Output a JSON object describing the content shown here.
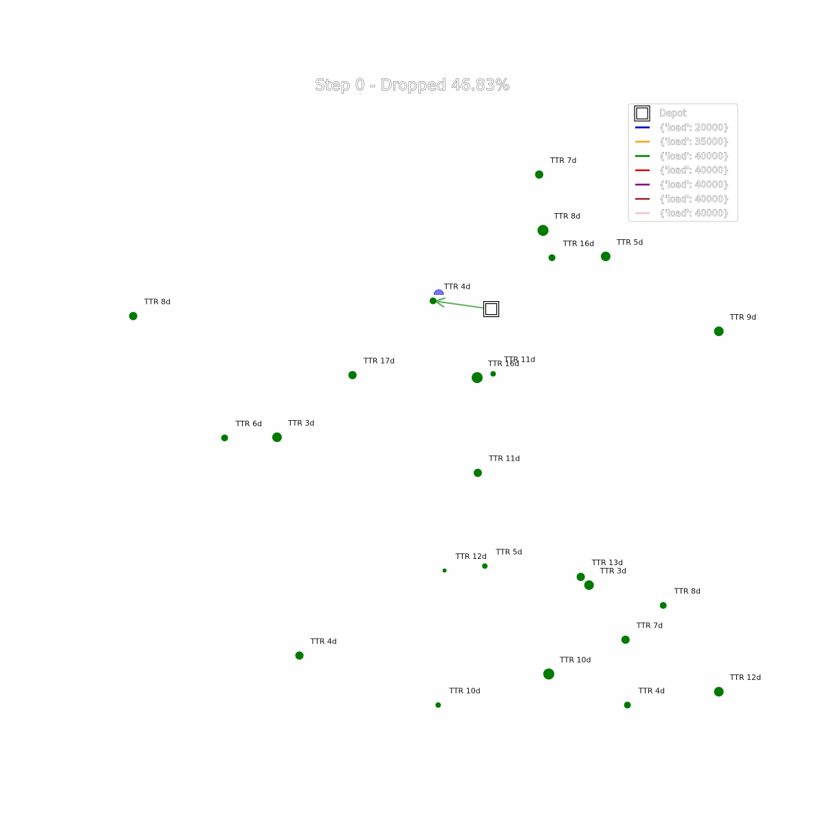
{
  "title": "Step 0 - Dropped 46.83%",
  "legend": {
    "entries": [
      {
        "label": "Depot",
        "marker": "depot-square"
      },
      {
        "label": "{'load': 20000}",
        "color": "#0000cc"
      },
      {
        "label": "{'load': 35000}",
        "color": "#f5a623"
      },
      {
        "label": "{'load': 40000}",
        "color": "#007a00"
      },
      {
        "label": "{'load': 40000}",
        "color": "#e01010"
      },
      {
        "label": "{'load': 40000}",
        "color": "#800080"
      },
      {
        "label": "{'load': 40000}",
        "color": "#a03030"
      },
      {
        "label": "{'load': 40000}",
        "color": "#f7c0c8"
      }
    ]
  },
  "chart_data": {
    "type": "scatter",
    "title": "Step 0 - Dropped 46.83%",
    "xlabel": "",
    "ylabel": "",
    "xlim": [
      0,
      1000
    ],
    "ylim": [
      0,
      1000
    ],
    "grid": false,
    "legend_position": "top-right",
    "depot": {
      "x": 607,
      "y": 670
    },
    "points": [
      {
        "x": 682,
        "y": 882,
        "size": 6,
        "label": "TTR 7d"
      },
      {
        "x": 688,
        "y": 794,
        "size": 8,
        "label": "TTR 8d"
      },
      {
        "x": 702,
        "y": 751,
        "size": 5,
        "label": "TTR 16d"
      },
      {
        "x": 786,
        "y": 753,
        "size": 7,
        "label": "TTR 5d"
      },
      {
        "x": 516,
        "y": 683,
        "size": 5,
        "label": "TTR 4d"
      },
      {
        "x": 47,
        "y": 659,
        "size": 6,
        "label": "TTR 8d"
      },
      {
        "x": 963,
        "y": 635,
        "size": 7,
        "label": "TTR 9d"
      },
      {
        "x": 390,
        "y": 566,
        "size": 6,
        "label": "TTR 17d"
      },
      {
        "x": 585,
        "y": 562,
        "size": 8,
        "label": "TTR 16d"
      },
      {
        "x": 610,
        "y": 568,
        "size": 4,
        "label": "TTR 11d"
      },
      {
        "x": 190,
        "y": 467,
        "size": 5,
        "label": "TTR 6d"
      },
      {
        "x": 272,
        "y": 468,
        "size": 7,
        "label": "TTR 3d"
      },
      {
        "x": 586,
        "y": 412,
        "size": 6,
        "label": "TTR 11d"
      },
      {
        "x": 534,
        "y": 258,
        "size": 3,
        "label": "TTR 12d"
      },
      {
        "x": 597,
        "y": 265,
        "size": 4,
        "label": "TTR 5d"
      },
      {
        "x": 747,
        "y": 248,
        "size": 6,
        "label": "TTR 13d"
      },
      {
        "x": 760,
        "y": 235,
        "size": 7,
        "label": "TTR 3d"
      },
      {
        "x": 876,
        "y": 203,
        "size": 5,
        "label": "TTR 8d"
      },
      {
        "x": 817,
        "y": 149,
        "size": 6,
        "label": "TTR 7d"
      },
      {
        "x": 307,
        "y": 124,
        "size": 6,
        "label": "TTR 4d"
      },
      {
        "x": 697,
        "y": 95,
        "size": 8,
        "label": "TTR 10d"
      },
      {
        "x": 963,
        "y": 67,
        "size": 7,
        "label": "TTR 12d"
      },
      {
        "x": 524,
        "y": 46,
        "size": 4,
        "label": "TTR 10d"
      },
      {
        "x": 820,
        "y": 46,
        "size": 5,
        "label": "TTR 4d"
      }
    ],
    "routes": [
      {
        "color": "#60b060",
        "from": "Depot",
        "to": "TTR 4d",
        "path": [
          [
            607,
            670
          ],
          [
            516,
            683
          ]
        ]
      }
    ],
    "wedge": {
      "x": 525,
      "y": 693,
      "color": "#5555ee"
    }
  }
}
